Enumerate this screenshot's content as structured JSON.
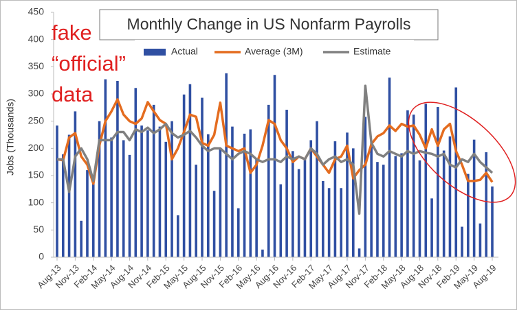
{
  "chart_data": {
    "type": "bar-line",
    "title": "Monthly Change in US Nonfarm Payrolls",
    "y_label": "Jobs (Thousands)",
    "annotation": [
      "fake",
      "“official”",
      "data"
    ],
    "categories": [
      "Aug-13",
      null,
      null,
      "Nov-13",
      null,
      null,
      "Feb-14",
      null,
      null,
      "May-14",
      null,
      null,
      "Aug-14",
      null,
      null,
      "Nov-14",
      null,
      null,
      "Feb-15",
      null,
      null,
      "May-15",
      null,
      null,
      "Aug-15",
      null,
      null,
      "Nov-15",
      null,
      null,
      "Feb-16",
      null,
      null,
      "May-16",
      null,
      null,
      "Aug-16",
      null,
      null,
      "Nov-16",
      null,
      null,
      "Feb-17",
      null,
      null,
      "May-17",
      null,
      null,
      "Aug-17",
      null,
      null,
      "Nov-17",
      null,
      null,
      "Feb-18",
      null,
      null,
      "May-18",
      null,
      null,
      "Aug-18",
      null,
      null,
      "Nov-18",
      null,
      null,
      "Feb-19",
      null,
      null,
      "May-19",
      null,
      null,
      "Aug-19"
    ],
    "series": [
      {
        "name": "Actual",
        "kind": "bar",
        "color": "#2f4fa2",
        "values": [
          242,
          189,
          225,
          268,
          67,
          160,
          150,
          250,
          327,
          220,
          324,
          215,
          188,
          311,
          242,
          233,
          280,
          240,
          212,
          250,
          77,
          299,
          318,
          170,
          293,
          226,
          122,
          200,
          338,
          240,
          90,
          227,
          235,
          180,
          14,
          280,
          335,
          134,
          271,
          195,
          162,
          180,
          215,
          250,
          140,
          127,
          213,
          127,
          229,
          200,
          16,
          258,
          210,
          175,
          170,
          330,
          186,
          191,
          270,
          262,
          178,
          282,
          108,
          276,
          196,
          222,
          312,
          56,
          153,
          216,
          62,
          193,
          130
        ]
      },
      {
        "name": "Average (3M)",
        "kind": "line",
        "color": "#e46c1f",
        "values": [
          180,
          178,
          220,
          228,
          185,
          170,
          135,
          205,
          250,
          268,
          290,
          262,
          250,
          245,
          255,
          285,
          268,
          252,
          245,
          180,
          200,
          230,
          262,
          258,
          210,
          205,
          225,
          284,
          205,
          200,
          195,
          200,
          155,
          170,
          205,
          252,
          245,
          215,
          200,
          175,
          185,
          180,
          200,
          185,
          170,
          155,
          180,
          185,
          205,
          145,
          160,
          170,
          208,
          222,
          228,
          242,
          232,
          245,
          240,
          242,
          225,
          200,
          235,
          205,
          235,
          245,
          195,
          170,
          140,
          140,
          142,
          155,
          138
        ]
      },
      {
        "name": "Estimate",
        "kind": "line",
        "color": "#808080",
        "values": [
          180,
          180,
          120,
          185,
          200,
          180,
          140,
          215,
          215,
          215,
          230,
          230,
          215,
          235,
          230,
          238,
          228,
          235,
          245,
          228,
          220,
          225,
          232,
          220,
          205,
          195,
          200,
          200,
          190,
          180,
          190,
          195,
          190,
          180,
          175,
          180,
          180,
          175,
          185,
          180,
          185,
          180,
          200,
          190,
          170,
          180,
          185,
          175,
          180,
          170,
          80,
          315,
          210,
          190,
          185,
          195,
          190,
          185,
          195,
          190,
          195,
          192,
          190,
          185,
          190,
          170,
          165,
          180,
          175,
          190,
          175,
          165,
          155
        ]
      }
    ],
    "ylim": [
      0,
      450
    ],
    "yticks": [
      0,
      50,
      100,
      150,
      200,
      250,
      300,
      350,
      400,
      450
    ],
    "grid": false
  }
}
